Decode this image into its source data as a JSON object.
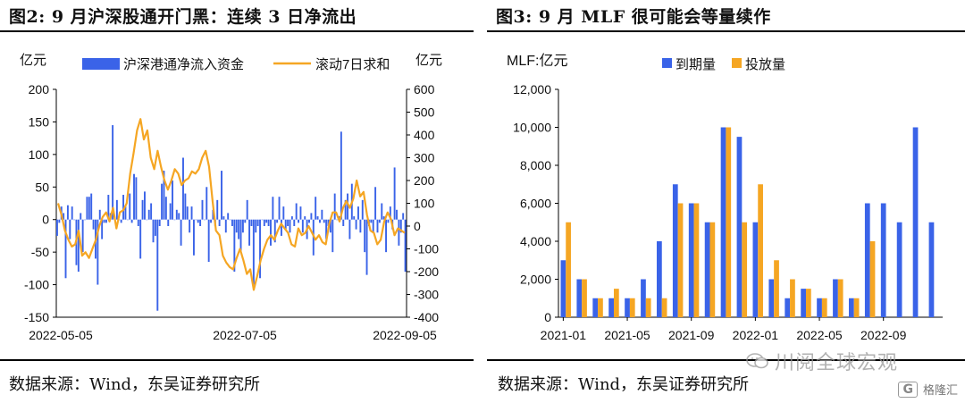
{
  "left": {
    "title": "图2:  9 月沪深股通开门黑：连续 3 日净流出",
    "source": "数据来源：Wind，东吴证券研究所",
    "chart_data": {
      "type": "bar+line",
      "ylabel_left": "亿元",
      "ylabel_right": "亿元",
      "ylim_left": [
        -150,
        200
      ],
      "ylim_right": [
        -400,
        600
      ],
      "yticks_left": [
        "200",
        "150",
        "100",
        "50",
        "0",
        "-50",
        "-100",
        "-150"
      ],
      "yticks_right": [
        "600",
        "500",
        "400",
        "300",
        "200",
        "100",
        "0",
        "-100",
        "-200",
        "-300",
        "-400"
      ],
      "xticks": [
        "2022-05-05",
        "2022-07-05",
        "2022-09-05"
      ],
      "legend": [
        "沪深港通净流入资金",
        "滚动7日求和"
      ],
      "colors": {
        "bar": "#3a63e8",
        "line": "#f5a623"
      },
      "bars": [
        -25,
        -5,
        20,
        10,
        -90,
        22,
        -30,
        20,
        0,
        -70,
        -80,
        10,
        -50,
        0,
        35,
        35,
        40,
        -15,
        -60,
        -100,
        15,
        -30,
        -5,
        -5,
        38,
        10,
        145,
        0,
        30,
        0,
        -5,
        38,
        20,
        0,
        40,
        -5,
        70,
        65,
        -10,
        -60,
        30,
        43,
        0,
        15,
        25,
        -35,
        -25,
        -140,
        -10,
        55,
        75,
        35,
        -10,
        25,
        60,
        0,
        15,
        10,
        -40,
        95,
        40,
        20,
        -20,
        20,
        -55,
        0,
        -5,
        -10,
        30,
        0,
        50,
        -65,
        -5,
        15,
        -10,
        30,
        -10,
        75,
        5,
        -20,
        10,
        0,
        -10,
        -80,
        -20,
        -30,
        -50,
        -20,
        -5,
        30,
        -40,
        -10,
        -100,
        -20,
        -10,
        -90,
        0,
        -10,
        -5,
        -10,
        -40,
        35,
        -35,
        -5,
        35,
        -25,
        20,
        -15,
        -10,
        -20,
        5,
        -10,
        25,
        -5,
        20,
        -20,
        5,
        -30,
        -5,
        10,
        -55,
        35,
        5,
        -5,
        15,
        -5,
        -30,
        -10,
        -20,
        -50,
        40,
        0,
        5,
        135,
        -10,
        30,
        40,
        -30,
        55,
        5,
        -15,
        20,
        -20,
        30,
        -50,
        -85,
        -10,
        -5,
        -20,
        50,
        -20,
        -5,
        25,
        5,
        -50,
        -5,
        20,
        -15,
        80,
        15,
        -40,
        -20,
        10,
        -80
      ],
      "line": [
        100,
        50,
        -20,
        -60,
        -90,
        -80,
        -20,
        -130,
        -115,
        -140,
        -100,
        -60,
        0,
        40,
        60,
        20,
        80,
        -10,
        60,
        70,
        100,
        230,
        320,
        420,
        470,
        380,
        420,
        300,
        250,
        330,
        260,
        200,
        160,
        200,
        250,
        230,
        180,
        200,
        210,
        240,
        230,
        250,
        300,
        330,
        260,
        110,
        -20,
        -40,
        -130,
        -160,
        -180,
        -190,
        -140,
        -100,
        -150,
        -210,
        -190,
        -280,
        -220,
        -150,
        -100,
        -60,
        -40,
        -60,
        -20,
        10,
        -10,
        -30,
        -80,
        -90,
        -10,
        -40,
        -30,
        0,
        -30,
        -60,
        -40,
        -70,
        -80,
        10,
        60,
        60,
        20,
        80,
        110,
        80,
        120,
        200,
        130,
        150,
        50,
        -20,
        -30,
        -80,
        -60,
        20,
        60,
        30,
        -40,
        -10,
        -20,
        -30
      ]
    }
  },
  "right": {
    "title": "图3:  9 月 MLF 很可能会等量续作",
    "source": "数据来源：Wind，东吴证券研究所",
    "chart_data": {
      "type": "bar",
      "ylabel": "MLF:亿元",
      "ylim": [
        0,
        12000
      ],
      "yticks": [
        "12,000",
        "10,000",
        "8,000",
        "6,000",
        "4,000",
        "2,000",
        "0"
      ],
      "xticks": [
        "2021-01",
        "2021-05",
        "2021-09",
        "2022-01",
        "2022-05",
        "2022-09"
      ],
      "legend": [
        "到期量",
        "投放量"
      ],
      "colors": {
        "due": "#3a63e8",
        "issue": "#f5a623"
      },
      "series": [
        {
          "name": "到期量",
          "values": [
            3000,
            2000,
            1000,
            1000,
            1000,
            2000,
            4000,
            7000,
            6000,
            5000,
            10000,
            9500,
            5000,
            2000,
            1000,
            1500,
            1000,
            2000,
            1000,
            6000,
            6000,
            5000,
            10000,
            5000
          ]
        },
        {
          "name": "投放量",
          "values": [
            5000,
            2000,
            1000,
            1500,
            1000,
            1000,
            1000,
            6000,
            6000,
            5000,
            10000,
            5000,
            7000,
            3000,
            2000,
            1500,
            1000,
            2000,
            1000,
            4000,
            null,
            null,
            null,
            null
          ]
        }
      ]
    }
  },
  "watermark": {
    "left": "川阅全球宏观",
    "right": "格隆汇",
    "logo": "G"
  }
}
